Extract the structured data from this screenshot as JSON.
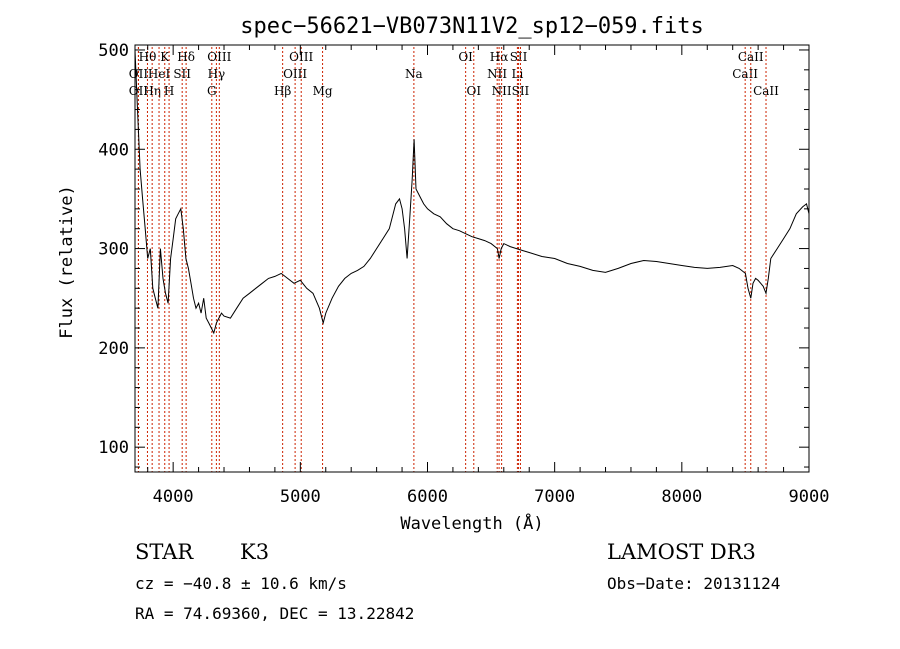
{
  "chart_data": {
    "type": "line",
    "title": "spec−56621−VB073N11V2_sp12−059.fits",
    "xlabel": "Wavelength (Å)",
    "ylabel": "Flux (relative)",
    "xlim": [
      3700,
      9000
    ],
    "ylim": [
      75,
      505
    ],
    "x_ticks": [
      4000,
      5000,
      6000,
      7000,
      8000,
      9000
    ],
    "y_ticks": [
      100,
      200,
      300,
      400,
      500
    ],
    "grid": false,
    "line_color": "#000000",
    "marker_color": "#cc2200",
    "series": [
      {
        "x": [
          3700,
          3720,
          3740,
          3760,
          3780,
          3800,
          3820,
          3840,
          3860,
          3880,
          3900,
          3920,
          3940,
          3960,
          3980,
          4000,
          4020,
          4040,
          4060,
          4080,
          4100,
          4120,
          4140,
          4160,
          4180,
          4200,
          4220,
          4240,
          4260,
          4280,
          4300,
          4320,
          4340,
          4360,
          4380,
          4400,
          4450,
          4500,
          4550,
          4600,
          4650,
          4700,
          4750,
          4800,
          4850,
          4900,
          4950,
          5000,
          5050,
          5100,
          5150,
          5180,
          5200,
          5250,
          5300,
          5350,
          5400,
          5450,
          5500,
          5550,
          5600,
          5650,
          5700,
          5750,
          5780,
          5800,
          5820,
          5840,
          5860,
          5880,
          5895,
          5910,
          5930,
          5950,
          5970,
          6000,
          6050,
          6100,
          6150,
          6200,
          6250,
          6300,
          6350,
          6400,
          6450,
          6500,
          6550,
          6563,
          6580,
          6600,
          6650,
          6700,
          6750,
          6800,
          6900,
          7000,
          7100,
          7200,
          7300,
          7400,
          7500,
          7600,
          7700,
          7800,
          7900,
          8000,
          8100,
          8200,
          8300,
          8400,
          8450,
          8500,
          8520,
          8542,
          8560,
          8580,
          8600,
          8620,
          8640,
          8662,
          8680,
          8700,
          8750,
          8800,
          8850,
          8900,
          8950,
          8980,
          9000
        ],
        "y": [
          500,
          440,
          380,
          350,
          320,
          290,
          300,
          260,
          250,
          240,
          300,
          270,
          255,
          245,
          290,
          310,
          330,
          335,
          340,
          320,
          290,
          280,
          265,
          250,
          240,
          245,
          235,
          250,
          230,
          225,
          220,
          215,
          225,
          230,
          235,
          232,
          230,
          240,
          250,
          255,
          260,
          265,
          270,
          272,
          275,
          270,
          265,
          268,
          260,
          255,
          240,
          225,
          235,
          250,
          262,
          270,
          275,
          278,
          282,
          290,
          300,
          310,
          320,
          345,
          350,
          340,
          320,
          290,
          330,
          370,
          410,
          360,
          355,
          350,
          345,
          340,
          335,
          332,
          325,
          320,
          318,
          315,
          312,
          310,
          308,
          305,
          300,
          290,
          300,
          305,
          302,
          300,
          298,
          296,
          292,
          290,
          285,
          282,
          278,
          276,
          280,
          285,
          288,
          287,
          285,
          283,
          281,
          280,
          281,
          283,
          280,
          275,
          260,
          250,
          265,
          270,
          268,
          265,
          262,
          255,
          270,
          290,
          300,
          310,
          320,
          335,
          342,
          345,
          335
        ]
      }
    ],
    "line_markers": [
      {
        "wl": 3727,
        "label": "OII",
        "row": 2
      },
      {
        "wl": 3727,
        "label": "OII",
        "row": 3
      },
      {
        "wl": 3798,
        "label": "Hθ",
        "row": 1
      },
      {
        "wl": 3835,
        "label": "Hη",
        "row": 3
      },
      {
        "wl": 3889,
        "label": "HeI",
        "row": 2
      },
      {
        "wl": 3934,
        "label": "K",
        "row": 1
      },
      {
        "wl": 3968,
        "label": "H",
        "row": 3
      },
      {
        "wl": 4071,
        "label": "SII",
        "row": 2
      },
      {
        "wl": 4102,
        "label": "Hδ",
        "row": 1
      },
      {
        "wl": 4304,
        "label": "G",
        "row": 3
      },
      {
        "wl": 4340,
        "label": "Hγ",
        "row": 2
      },
      {
        "wl": 4363,
        "label": "OIII",
        "row": 1
      },
      {
        "wl": 4861,
        "label": "Hβ",
        "row": 3
      },
      {
        "wl": 4959,
        "label": "OIII",
        "row": 2
      },
      {
        "wl": 5007,
        "label": "OIII",
        "row": 1
      },
      {
        "wl": 5175,
        "label": "Mg",
        "row": 3
      },
      {
        "wl": 5893,
        "label": "Na",
        "row": 2
      },
      {
        "wl": 6300,
        "label": "OI",
        "row": 1
      },
      {
        "wl": 6364,
        "label": "OI",
        "row": 3
      },
      {
        "wl": 6548,
        "label": "NII",
        "row": 2
      },
      {
        "wl": 6563,
        "label": "Hα",
        "row": 1
      },
      {
        "wl": 6583,
        "label": "NII",
        "row": 3
      },
      {
        "wl": 6707,
        "label": "Li",
        "row": 2
      },
      {
        "wl": 6716,
        "label": "SII",
        "row": 1
      },
      {
        "wl": 6731,
        "label": "SII",
        "row": 3
      },
      {
        "wl": 8498,
        "label": "CaII",
        "row": 2
      },
      {
        "wl": 8542,
        "label": "CaII",
        "row": 1
      },
      {
        "wl": 8662,
        "label": "CaII",
        "row": 3
      }
    ]
  },
  "info": {
    "object_class": "STAR",
    "subclass": "K3",
    "survey": "LAMOST DR3",
    "cz": "cz = −40.8 ± 10.6 km/s",
    "obs_date": "Obs−Date: 20131124",
    "radec": "RA =  74.69360, DEC =  13.22842"
  }
}
